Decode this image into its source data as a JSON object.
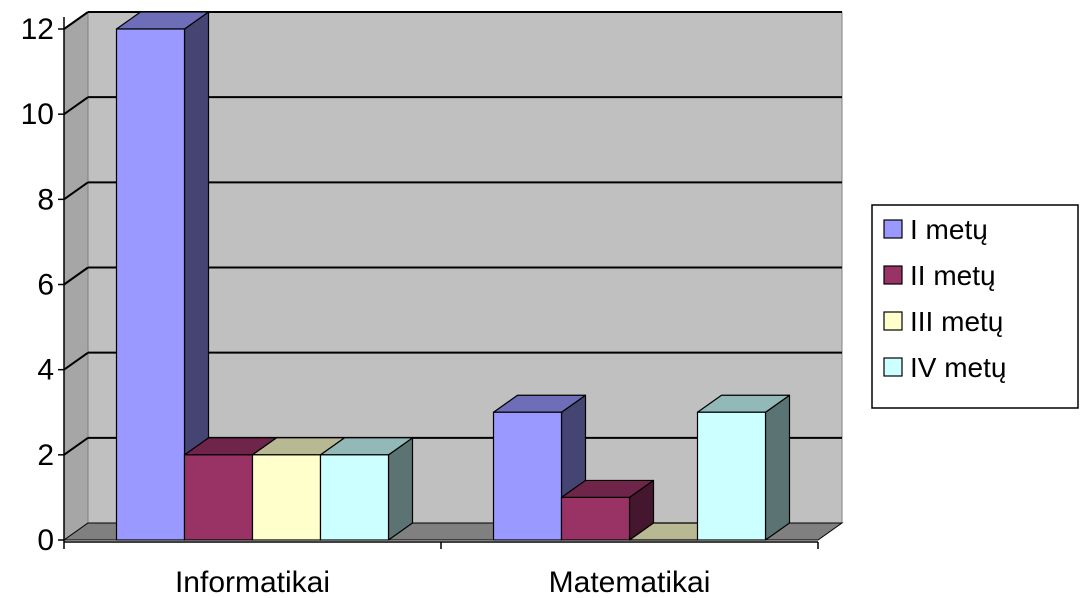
{
  "chart_data": {
    "type": "bar",
    "title": "",
    "xlabel": "",
    "ylabel": "",
    "categories": [
      "Informatikai",
      "Matematikai"
    ],
    "series": [
      {
        "name": "I metų",
        "values": [
          12,
          3
        ],
        "color": "#9999ff"
      },
      {
        "name": "II metų",
        "values": [
          2,
          1
        ],
        "color": "#993366"
      },
      {
        "name": "III metų",
        "values": [
          2,
          0
        ],
        "color": "#ffffcc"
      },
      {
        "name": "IV metų",
        "values": [
          2,
          3
        ],
        "color": "#ccffff"
      }
    ],
    "ylim": [
      0,
      12
    ],
    "yticks": [
      "0",
      "2",
      "4",
      "6",
      "8",
      "10",
      "12"
    ],
    "grid": true,
    "legend_position": "right",
    "style": "3d-clustered-column",
    "wall_color": "#c0c0c0",
    "floor_color": "#808080"
  }
}
